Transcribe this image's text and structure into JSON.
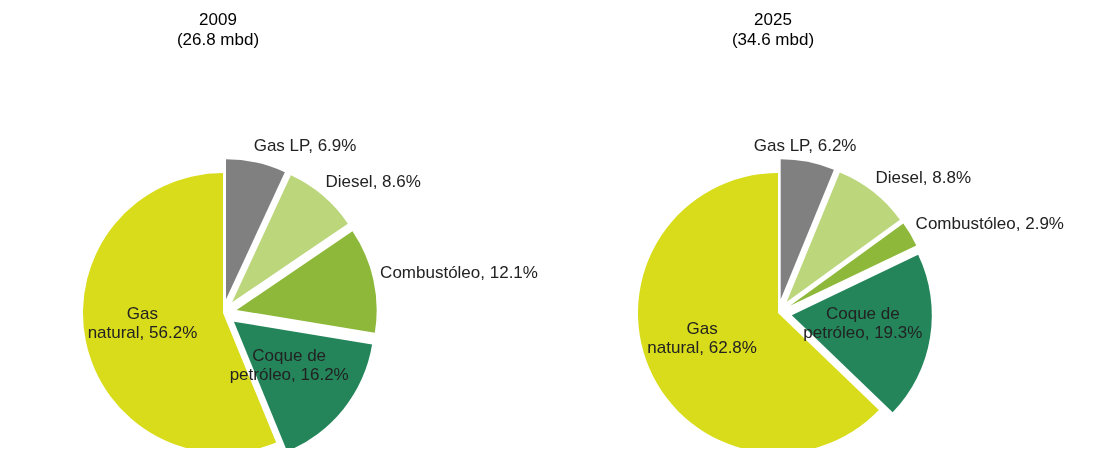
{
  "chart_data": [
    {
      "type": "pie",
      "title": "2009",
      "subtitle": "(26.8 mbd)",
      "categories": [
        "Gas LP",
        "Diesel",
        "Combustóleo",
        "Coque de petróleo",
        "Gas natural"
      ],
      "values": [
        6.9,
        8.6,
        12.1,
        16.2,
        56.2
      ],
      "value_labels": [
        "6.9%",
        "8.6%",
        "12.1%",
        "16.2%",
        "56.2%"
      ],
      "colors": [
        "#808080",
        "#bcd67c",
        "#8db83a",
        "#24855a",
        "#d8dc1a"
      ],
      "legend": false
    },
    {
      "type": "pie",
      "title": "2025",
      "subtitle": "(34.6 mbd)",
      "categories": [
        "Gas LP",
        "Diesel",
        "Combustóleo",
        "Coque de petróleo",
        "Gas natural"
      ],
      "values": [
        6.2,
        8.8,
        2.9,
        19.3,
        62.8
      ],
      "value_labels": [
        "6.2%",
        "8.8%",
        "2.9%",
        "19.3%",
        "62.8%"
      ],
      "colors": [
        "#808080",
        "#bcd67c",
        "#8db83a",
        "#24855a",
        "#d8dc1a"
      ],
      "legend": false
    }
  ]
}
